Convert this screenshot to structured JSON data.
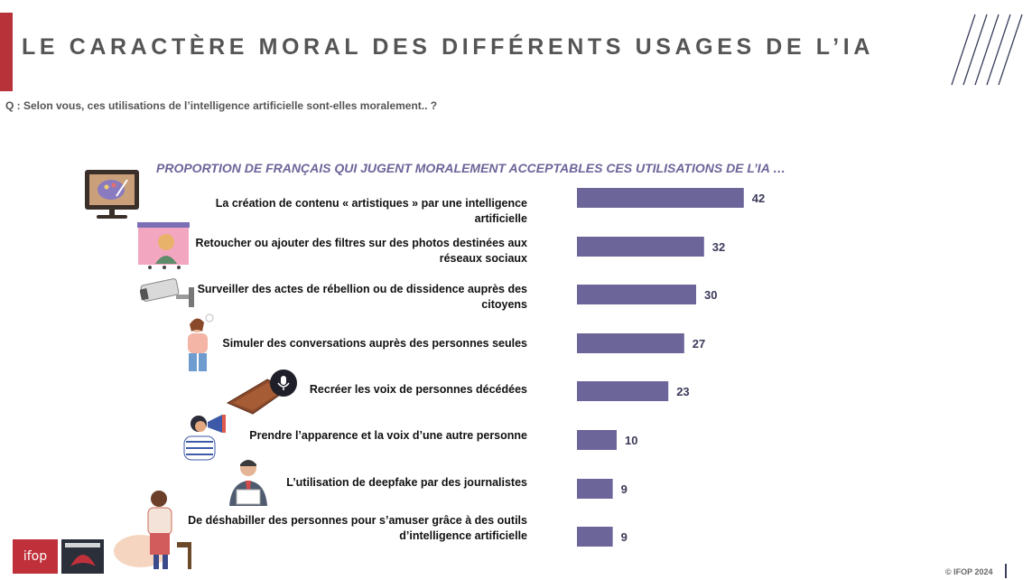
{
  "header": {
    "title": "LE CARACTÈRE MORAL DES DIFFÉRENTS USAGES DE L’IA",
    "question": "Q : Selon vous, ces utilisations de l’intelligence artificielle sont-elles moralement.. ?"
  },
  "colors": {
    "accent": "#b8323a",
    "bar": "#6b6599",
    "title": "#555555"
  },
  "chart_data": {
    "type": "bar",
    "orientation": "horizontal",
    "title": "PROPORTION DE FRANÇAIS QUI JUGENT MORALEMENT ACCEPTABLES CES UTILISATIONS DE L’IA …",
    "categories": [
      "La création de contenu « artistiques » par une intelligence artificielle",
      "Retoucher ou ajouter des filtres sur des photos destinées aux réseaux sociaux",
      "Surveiller des actes de rébellion ou de dissidence auprès des citoyens",
      "Simuler des conversations auprès des personnes seules",
      "Recréer les voix de personnes décédées",
      "Prendre l’apparence et la voix d’une autre personne",
      "L’utilisation de deepfake par des journalistes",
      "De déshabiller des personnes pour s’amuser grâce à des outils d’intelligence artificielle"
    ],
    "values": [
      42,
      32,
      30,
      27,
      23,
      10,
      9,
      9
    ],
    "xlim": [
      0,
      100
    ],
    "grid": false,
    "legend": "none"
  },
  "illustrations": [
    "painting-monitor-icon",
    "photo-filter-icon",
    "security-camera-icon",
    "person-talking-icon",
    "coffin-microphone-icon",
    "megaphone-person-icon",
    "news-anchor-icon",
    "sitting-man-icon"
  ],
  "footer": {
    "logo_main": "ifop",
    "copyright": "© IFOP 2024"
  }
}
